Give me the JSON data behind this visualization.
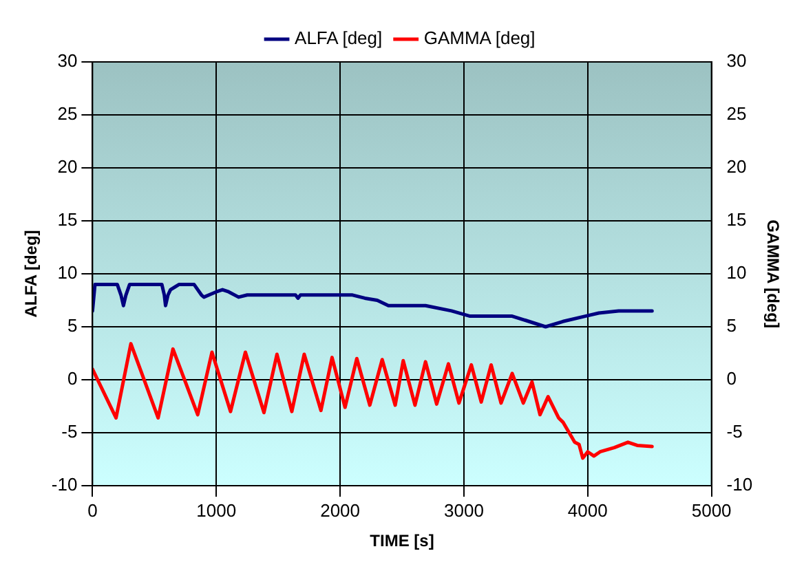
{
  "chart_data": {
    "type": "line",
    "xlabel": "TIME [s]",
    "ylabel": "ALFA [deg]",
    "y2label": "GAMMA [deg]",
    "xlim": [
      0,
      5000
    ],
    "xticks": [
      0,
      1000,
      2000,
      3000,
      4000,
      5000
    ],
    "ylim": [
      -10,
      30
    ],
    "yticks": [
      -10,
      -5,
      0,
      5,
      10,
      15,
      20,
      25,
      30
    ],
    "y2lim": [
      -10,
      30
    ],
    "y2ticks": [
      -10,
      -5,
      0,
      5,
      10,
      15,
      20,
      25,
      30
    ],
    "grid": true,
    "legend": "top",
    "marker": "none",
    "line_style": "solid",
    "series": [
      {
        "name": "ALFA [deg]",
        "color": "#000080",
        "x": [
          0,
          20,
          200,
          230,
          250,
          270,
          300,
          560,
          580,
          590,
          610,
          630,
          700,
          820,
          880,
          900,
          960,
          1000,
          1050,
          1100,
          1180,
          1250,
          1640,
          1660,
          1680,
          2100,
          2200,
          2300,
          2390,
          2690,
          2900,
          3050,
          3390,
          3500,
          3660,
          3800,
          3980,
          4090,
          4250,
          4520
        ],
        "values": [
          6.5,
          9,
          9,
          8,
          7,
          8,
          9,
          9,
          8,
          7,
          8,
          8.5,
          9,
          9,
          8,
          7.8,
          8.1,
          8.3,
          8.5,
          8.3,
          7.8,
          8,
          8,
          7.7,
          8,
          8,
          7.7,
          7.5,
          7,
          7,
          6.5,
          6,
          6,
          5.6,
          5,
          5.5,
          6,
          6.3,
          6.5,
          6.5
        ]
      },
      {
        "name": "GAMMA [deg]",
        "color": "#ff0000",
        "axis": "y2",
        "x": [
          0,
          190,
          310,
          530,
          650,
          850,
          965,
          1115,
          1235,
          1385,
          1490,
          1610,
          1710,
          1845,
          1935,
          2040,
          2135,
          2240,
          2340,
          2445,
          2510,
          2605,
          2690,
          2780,
          2875,
          2960,
          3060,
          3140,
          3220,
          3300,
          3390,
          3480,
          3550,
          3615,
          3680,
          3765,
          3800,
          3895,
          3930,
          3960,
          4000,
          4050,
          4100,
          4215,
          4325,
          4400,
          4520
        ],
        "values": [
          1,
          -3.6,
          3.4,
          -3.6,
          2.9,
          -3.3,
          2.6,
          -3,
          2.6,
          -3.1,
          2.4,
          -3,
          2.4,
          -2.9,
          2.1,
          -2.6,
          2,
          -2.4,
          1.9,
          -2.4,
          1.8,
          -2.4,
          1.7,
          -2.3,
          1.5,
          -2.2,
          1.4,
          -2.1,
          1.4,
          -2.2,
          0.6,
          -2.2,
          -0.2,
          -3.3,
          -1.6,
          -3.6,
          -4,
          -5.9,
          -6.1,
          -7.4,
          -6.8,
          -7.2,
          -6.8,
          -6.4,
          -5.9,
          -6.2,
          -6.3
        ]
      }
    ]
  }
}
